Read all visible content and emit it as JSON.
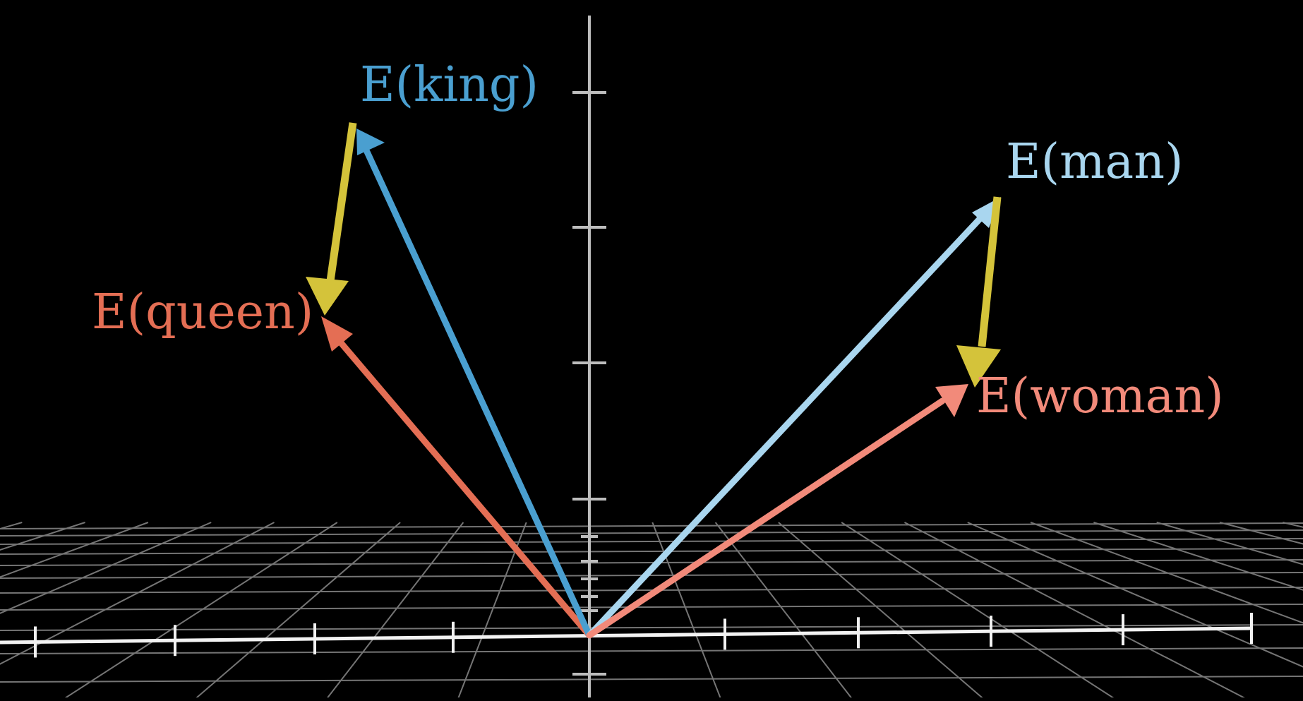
{
  "vectors": [
    {
      "id": "king",
      "label": "E(king)",
      "color": "#4a9fd0"
    },
    {
      "id": "queen",
      "label": "E(queen)",
      "color": "#e46e54"
    },
    {
      "id": "man",
      "label": "E(man)",
      "color": "#a9d6ef"
    },
    {
      "id": "woman",
      "label": "E(woman)",
      "color": "#f28a7a"
    }
  ],
  "difference_color": "#d4c33a",
  "axis_color": "#bdbdbd",
  "grid_color": "#8a8a8a"
}
